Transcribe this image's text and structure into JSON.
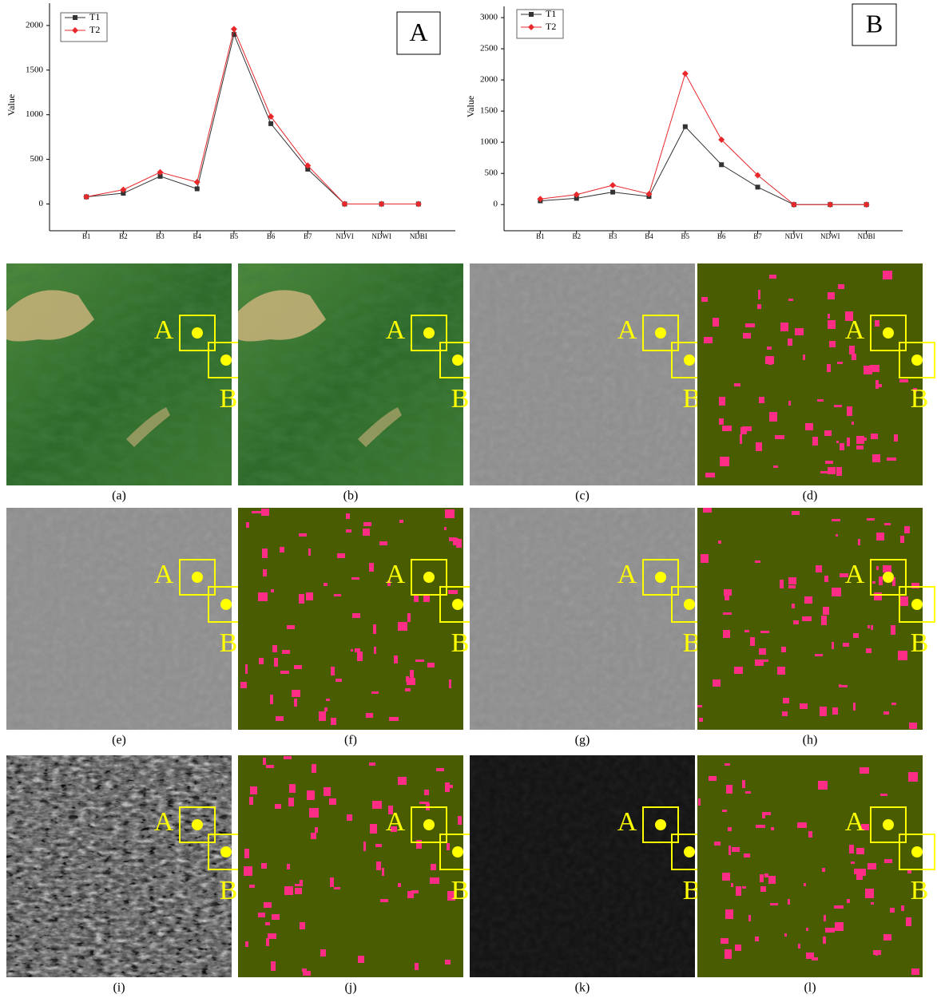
{
  "chart_data": [
    {
      "type": "line",
      "annotation": "A",
      "y_label": "Value",
      "categories": [
        "B1",
        "B2",
        "B3",
        "B4",
        "B5",
        "B6",
        "B7",
        "NDVI",
        "NDWI",
        "NDBI"
      ],
      "series": [
        {
          "name": "T1",
          "color": "#333333",
          "marker": "square",
          "values": [
            80,
            120,
            310,
            170,
            1900,
            900,
            390,
            0,
            0,
            0
          ]
        },
        {
          "name": "T2",
          "color": "#e8282b",
          "marker": "diamond",
          "values": [
            80,
            160,
            355,
            245,
            1960,
            980,
            430,
            0,
            0,
            0
          ]
        }
      ],
      "ylim": [
        -300,
        2250
      ],
      "yticks": [
        0,
        500,
        1000,
        1500,
        2000
      ],
      "legend": "upper left"
    },
    {
      "type": "line",
      "annotation": "B",
      "y_label": "Value",
      "categories": [
        "B1",
        "B2",
        "B3",
        "B4",
        "B5",
        "B6",
        "B7",
        "NDVI",
        "NDWI",
        "NDBI"
      ],
      "series": [
        {
          "name": "T1",
          "color": "#333333",
          "marker": "square",
          "values": [
            60,
            100,
            200,
            130,
            1250,
            640,
            280,
            0,
            0,
            0
          ]
        },
        {
          "name": "T2",
          "color": "#e8282b",
          "marker": "diamond",
          "values": [
            90,
            160,
            310,
            170,
            2100,
            1040,
            470,
            0,
            0,
            0
          ]
        }
      ],
      "ylim": [
        -420,
        3180
      ],
      "yticks": [
        0,
        500,
        1000,
        1500,
        2000,
        2500,
        3000
      ],
      "legend": "upper left"
    }
  ],
  "markers": [
    "A",
    "B"
  ],
  "panels": [
    "(a)",
    "(b)",
    "(c)",
    "(d)",
    "(e)",
    "(f)",
    "(g)",
    "(h)",
    "(i)",
    "(j)",
    "(k)",
    "(l)"
  ]
}
